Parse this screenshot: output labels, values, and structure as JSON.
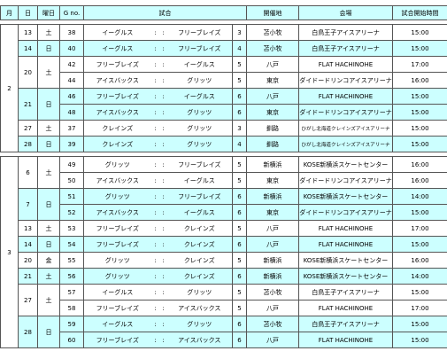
{
  "header": {
    "month": "月",
    "day": "日",
    "weekday": "曜日",
    "game": "G no.",
    "match": "試合",
    "city": "開催地",
    "venue": "会場",
    "time": "試合開始時間"
  },
  "separator": ":",
  "rows": [
    {
      "month": 2,
      "day": 13,
      "weekday": "土",
      "game": 38,
      "home": "イーグルス",
      "away": "フリーブレイズ",
      "round": 3,
      "city": "苫小牧",
      "venue": "白鳥王子アイスアリーナ",
      "time": "15:00"
    },
    {
      "day": 14,
      "weekday": "日",
      "game": 40,
      "home": "イーグルス",
      "away": "フリーブレイズ",
      "round": 4,
      "city": "苫小牧",
      "venue": "白鳥王子アイスアリーナ",
      "time": "15:00",
      "highlight": true
    },
    {
      "day": 20,
      "weekday": "土",
      "game": 42,
      "home": "フリーブレイズ",
      "away": "イーグルス",
      "round": 5,
      "city": "八戸",
      "venue": "FLAT HACHINOHE",
      "time": "17:00"
    },
    {
      "game": 44,
      "home": "アイスバックス",
      "away": "グリッツ",
      "round": 5,
      "city": "東京",
      "venue": "ダイドードリンコアイスアリーナ",
      "time": "16:00"
    },
    {
      "day": 21,
      "weekday": "日",
      "game": 46,
      "home": "フリーブレイズ",
      "away": "イーグルス",
      "round": 6,
      "city": "八戸",
      "venue": "FLAT HACHINOHE",
      "time": "15:00",
      "highlight": true
    },
    {
      "game": 48,
      "home": "アイスバックス",
      "away": "グリッツ",
      "round": 6,
      "city": "東京",
      "venue": "ダイドードリンコアイスアリーナ",
      "time": "15:00",
      "highlight": true
    },
    {
      "day": 27,
      "weekday": "土",
      "game": 37,
      "home": "クレインズ",
      "away": "グリッツ",
      "round": 3,
      "city": "釧路",
      "venue": "ひがし北海道クレインズアイスアリーナ",
      "time": "15:00"
    },
    {
      "day": 28,
      "weekday": "日",
      "game": 39,
      "home": "クレインズ",
      "away": "グリッツ",
      "round": 4,
      "city": "釧路",
      "venue": "ひがし北海道クレインズアイスアリーナ",
      "time": "15:00",
      "highlight": true
    },
    {
      "month": 3,
      "day": 6,
      "weekday": "土",
      "game": 49,
      "home": "グリッツ",
      "away": "フリーブレイズ",
      "round": 5,
      "city": "新横浜",
      "venue": "KOSE新横浜スケートセンター",
      "time": "16:00"
    },
    {
      "game": 50,
      "home": "アイスバックス",
      "away": "イーグルス",
      "round": 5,
      "city": "東京",
      "venue": "ダイドードリンコアイスアリーナ",
      "time": "16:00"
    },
    {
      "day": 7,
      "weekday": "日",
      "game": 51,
      "home": "グリッツ",
      "away": "フリーブレイズ",
      "round": 6,
      "city": "新横浜",
      "venue": "KOSE新横浜スケートセンター",
      "time": "14:00",
      "highlight": true
    },
    {
      "game": 52,
      "home": "アイスバックス",
      "away": "イーグルス",
      "round": 6,
      "city": "東京",
      "venue": "ダイドードリンコアイスアリーナ",
      "time": "15:00",
      "highlight": true
    },
    {
      "day": 13,
      "weekday": "土",
      "game": 53,
      "home": "フリーブレイズ",
      "away": "クレインズ",
      "round": 5,
      "city": "八戸",
      "venue": "FLAT HACHINOHE",
      "time": "17:00"
    },
    {
      "day": 14,
      "weekday": "日",
      "game": 54,
      "home": "フリーブレイズ",
      "away": "クレインズ",
      "round": 6,
      "city": "八戸",
      "venue": "FLAT HACHINOHE",
      "time": "15:00",
      "highlight": true
    },
    {
      "day": 20,
      "weekday": "金",
      "game": 55,
      "home": "グリッツ",
      "away": "クレインズ",
      "round": 5,
      "city": "新横浜",
      "venue": "KOSE新横浜スケートセンター",
      "time": "16:00"
    },
    {
      "day": 21,
      "weekday": "土",
      "game": 56,
      "home": "グリッツ",
      "away": "クレインズ",
      "round": 6,
      "city": "新横浜",
      "venue": "KOSE新横浜スケートセンター",
      "time": "14:00",
      "highlight": true
    },
    {
      "day": 27,
      "weekday": "土",
      "game": 57,
      "home": "イーグルス",
      "away": "グリッツ",
      "round": 5,
      "city": "苫小牧",
      "venue": "白鳥王子アイスアリーナ",
      "time": "15:00"
    },
    {
      "game": 58,
      "home": "フリーブレイズ",
      "away": "アイスバックス",
      "round": 5,
      "city": "八戸",
      "venue": "FLAT HACHINOHE",
      "time": "17:00"
    },
    {
      "day": 28,
      "weekday": "日",
      "game": 59,
      "home": "イーグルス",
      "away": "グリッツ",
      "round": 6,
      "city": "苫小牧",
      "venue": "白鳥王子アイスアリーナ",
      "time": "15:00",
      "highlight": true
    },
    {
      "game": 60,
      "home": "フリーブレイズ",
      "away": "アイスバックス",
      "round": 6,
      "city": "八戸",
      "venue": "FLAT HACHINOHE",
      "time": "15:00",
      "highlight": true
    }
  ]
}
